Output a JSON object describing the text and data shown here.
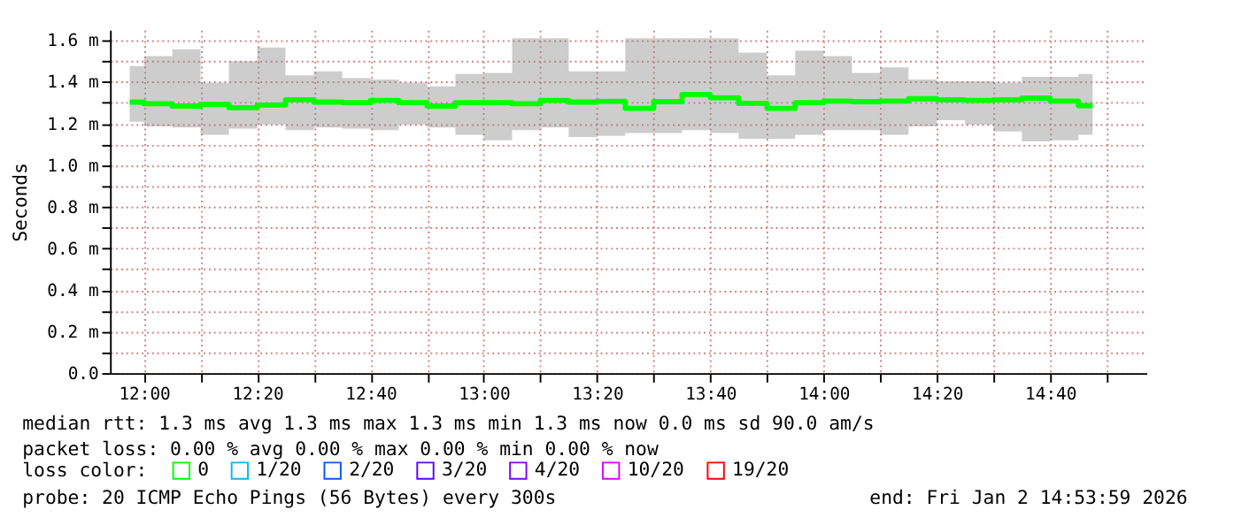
{
  "chart_data": {
    "type": "step",
    "ylabel": "Seconds",
    "legend_title": "loss color:",
    "legend": "bottom left",
    "grid": true,
    "x": [
      11.958,
      12.042,
      12.125,
      12.208,
      12.292,
      12.375,
      12.458,
      12.542,
      12.625,
      12.708,
      12.792,
      12.875,
      12.958,
      13.042,
      13.125,
      13.208,
      13.292,
      13.375,
      13.458,
      13.542,
      13.625,
      13.708,
      13.792,
      13.875,
      13.958,
      14.042,
      14.125,
      14.208,
      14.292,
      14.375,
      14.458,
      14.542,
      14.625,
      14.708,
      14.792
    ],
    "series": [
      {
        "name": "0",
        "color": "#00ff00",
        "values": [
          1.303,
          1.295,
          1.284,
          1.292,
          1.276,
          1.289,
          1.314,
          1.303,
          1.3,
          1.311,
          1.3,
          1.284,
          1.3,
          1.3,
          1.295,
          1.311,
          1.303,
          1.307,
          1.273,
          1.305,
          1.34,
          1.324,
          1.297,
          1.273,
          1.3,
          1.308,
          1.305,
          1.308,
          1.319,
          1.314,
          1.311,
          1.314,
          1.322,
          1.308,
          1.286
        ],
        "lower": [
          1.208,
          1.186,
          1.181,
          1.146,
          1.176,
          1.195,
          1.168,
          1.181,
          1.176,
          1.168,
          1.195,
          1.181,
          1.146,
          1.119,
          1.168,
          1.181,
          1.135,
          1.14,
          1.154,
          1.154,
          1.168,
          1.154,
          1.127,
          1.127,
          1.146,
          1.168,
          1.168,
          1.146,
          1.186,
          1.216,
          1.195,
          1.162,
          1.114,
          1.119,
          1.146
        ],
        "upper": [
          1.476,
          1.524,
          1.557,
          1.397,
          1.5,
          1.565,
          1.432,
          1.451,
          1.419,
          1.411,
          1.397,
          1.378,
          1.438,
          1.443,
          1.61,
          1.61,
          1.451,
          1.451,
          1.61,
          1.61,
          1.61,
          1.61,
          1.541,
          1.432,
          1.551,
          1.524,
          1.443,
          1.47,
          1.411,
          1.403,
          1.403,
          1.397,
          1.424,
          1.424,
          1.438
        ]
      },
      {
        "name": "1/20",
        "color": "#00b8ff",
        "values": [
          null,
          null,
          null,
          null,
          null,
          null,
          null,
          null,
          null,
          null,
          null,
          null,
          null,
          null,
          null,
          null,
          null,
          null,
          null,
          null,
          null,
          null,
          null,
          null,
          null,
          null,
          null,
          null,
          null,
          null,
          null,
          null,
          null,
          null,
          null
        ]
      },
      {
        "name": "2/20",
        "color": "#0059ff",
        "values": [
          null,
          null,
          null,
          null,
          null,
          null,
          null,
          null,
          null,
          null,
          null,
          null,
          null,
          null,
          null,
          null,
          null,
          null,
          null,
          null,
          null,
          null,
          null,
          null,
          null,
          null,
          null,
          null,
          null,
          null,
          null,
          null,
          null,
          null,
          null
        ]
      },
      {
        "name": "3/20",
        "color": "#5e00ff",
        "values": [
          null,
          null,
          null,
          null,
          null,
          null,
          null,
          null,
          null,
          null,
          null,
          null,
          null,
          null,
          null,
          null,
          null,
          null,
          null,
          null,
          null,
          null,
          null,
          null,
          null,
          null,
          null,
          null,
          null,
          null,
          null,
          null,
          null,
          null,
          null
        ]
      },
      {
        "name": "4/20",
        "color": "#7e00ff",
        "values": [
          null,
          null,
          null,
          null,
          null,
          null,
          null,
          null,
          null,
          null,
          null,
          null,
          null,
          null,
          null,
          null,
          null,
          null,
          null,
          null,
          null,
          null,
          null,
          null,
          null,
          null,
          null,
          null,
          null,
          null,
          null,
          null,
          null,
          null,
          null
        ]
      },
      {
        "name": "10/20",
        "color": "#dd00ff",
        "values": [
          null,
          null,
          null,
          null,
          null,
          null,
          null,
          null,
          null,
          null,
          null,
          null,
          null,
          null,
          null,
          null,
          null,
          null,
          null,
          null,
          null,
          null,
          null,
          null,
          null,
          null,
          null,
          null,
          null,
          null,
          null,
          null,
          null,
          null,
          null
        ]
      },
      {
        "name": "19/20",
        "color": "#ff0000",
        "values": [
          null,
          null,
          null,
          null,
          null,
          null,
          null,
          null,
          null,
          null,
          null,
          null,
          null,
          null,
          null,
          null,
          null,
          null,
          null,
          null,
          null,
          null,
          null,
          null,
          null,
          null,
          null,
          null,
          null,
          null,
          null,
          null,
          null,
          null,
          null
        ]
      }
    ],
    "xlim": [
      11.9,
      14.95
    ],
    "xticks": [
      {
        "value": 12,
        "label": "12:00"
      },
      {
        "value": 12.1667,
        "label": null
      },
      {
        "value": 12.3333,
        "label": "12:20"
      },
      {
        "value": 12.5,
        "label": null
      },
      {
        "value": 12.6667,
        "label": "12:40"
      },
      {
        "value": 12.8333,
        "label": null
      },
      {
        "value": 13,
        "label": "13:00"
      },
      {
        "value": 13.1667,
        "label": null
      },
      {
        "value": 13.3333,
        "label": "13:20"
      },
      {
        "value": 13.5,
        "label": null
      },
      {
        "value": 13.6667,
        "label": "13:40"
      },
      {
        "value": 13.8333,
        "label": null
      },
      {
        "value": 14,
        "label": "14:00"
      },
      {
        "value": 14.1667,
        "label": null
      },
      {
        "value": 14.3333,
        "label": "14:20"
      },
      {
        "value": 14.5,
        "label": null
      },
      {
        "value": 14.6667,
        "label": "14:40"
      },
      {
        "value": 14.8333,
        "label": null
      }
    ],
    "ylim": [
      0,
      1.65
    ],
    "yticks": [
      {
        "value": 0,
        "label": "0.0"
      },
      {
        "value": 0.1,
        "label": null
      },
      {
        "value": 0.2,
        "label": "0.2 m"
      },
      {
        "value": 0.3,
        "label": null
      },
      {
        "value": 0.4,
        "label": "0.4 m"
      },
      {
        "value": 0.5,
        "label": null
      },
      {
        "value": 0.6,
        "label": "0.6 m"
      },
      {
        "value": 0.7,
        "label": null
      },
      {
        "value": 0.8,
        "label": "0.8 m"
      },
      {
        "value": 0.9,
        "label": null
      },
      {
        "value": 1.0,
        "label": "1.0 m"
      },
      {
        "value": 1.1,
        "label": null
      },
      {
        "value": 1.2,
        "label": "1.2 m"
      },
      {
        "value": 1.3,
        "label": null
      },
      {
        "value": 1.4,
        "label": "1.4 m"
      },
      {
        "value": 1.5,
        "label": null
      },
      {
        "value": 1.6,
        "label": "1.6 m"
      }
    ],
    "annotations": [
      "median rtt:  1.3 ms avg  1.3 ms max  1.3 ms min  1.3 ms now  0.0 ms sd  90.0   am/s",
      "packet loss: 0.00 % avg  0.00 % max  0.00 % min  0.00 % now",
      "probe:       20 ICMP Echo Pings (56 Bytes) every 300s",
      "end: Fri Jan  2 14:53:59 2026"
    ]
  }
}
